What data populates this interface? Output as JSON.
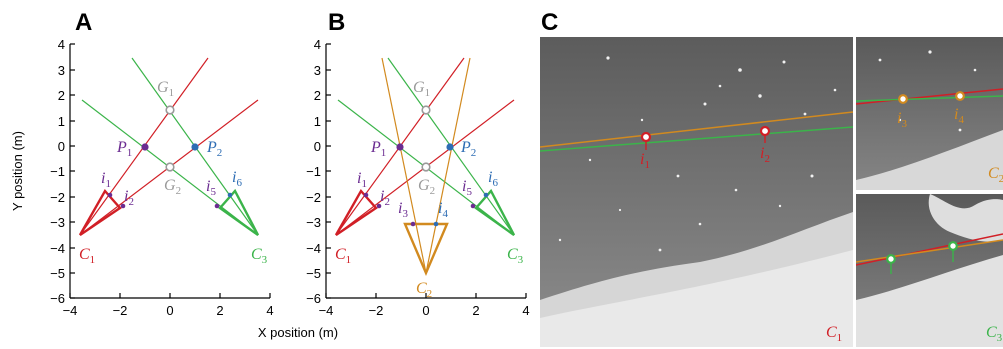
{
  "panels": {
    "a": {
      "letter": "A"
    },
    "b": {
      "letter": "B"
    },
    "c": {
      "letter": "C"
    }
  },
  "axes": {
    "x_label": "X position (m)",
    "y_label": "Y position (m)",
    "y_ticks": [
      "4",
      "3",
      "2",
      "1",
      "0",
      "−1",
      "−2",
      "−3",
      "−4",
      "−5",
      "−6"
    ],
    "x_ticks": [
      "−4",
      "−2",
      "0",
      "2",
      "4"
    ]
  },
  "labels": {
    "G": "G",
    "P": "P",
    "C": "C",
    "i": "i",
    "s1": "1",
    "s2": "2",
    "s3": "3",
    "s4": "4",
    "s5": "5",
    "s6": "6"
  },
  "colors": {
    "red": "#d11f26",
    "green": "#3bb44a",
    "orange": "#d28a1f",
    "gray": "#9a9a9a",
    "purple": "#6b2c91",
    "blue": "#2e6db4"
  },
  "photo_labels": {
    "c1": "C",
    "c1_sub": "1",
    "c2": "C",
    "c2_sub": "2",
    "c3": "C",
    "c3_sub": "3"
  }
}
